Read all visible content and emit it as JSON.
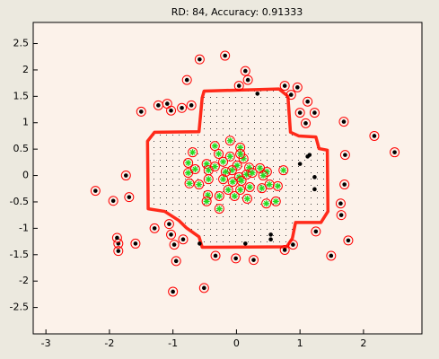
{
  "chart_data": {
    "type": "scatter",
    "title": "RD: 84, Accuracy: 0.91333",
    "xlim": [
      -3.2,
      2.92
    ],
    "ylim": [
      -3,
      2.9
    ],
    "xticks": [
      -3,
      -2,
      -1,
      0,
      1,
      2
    ],
    "yticks": [
      -2.5,
      -2,
      -1.5,
      -1,
      -0.5,
      0,
      0.5,
      1,
      1.5,
      2,
      2.5
    ],
    "boundary": {
      "color": "#ff2a1a",
      "x": [
        -0.51,
        0.67,
        0.81,
        0.85,
        0.98,
        1.25,
        1.3,
        1.43,
        1.44,
        1.33,
        0.93,
        0.88,
        0.79,
        -0.54,
        -0.59,
        -0.79,
        -0.91,
        -1.13,
        -1.39,
        -1.4,
        -1.29,
        -0.59,
        -0.54
      ],
      "y": [
        1.6,
        1.64,
        1.5,
        0.82,
        0.75,
        0.73,
        0.51,
        0.48,
        -0.68,
        -0.89,
        -0.89,
        -1.19,
        -1.35,
        -1.36,
        -1.16,
        -0.99,
        -0.85,
        -0.68,
        -0.63,
        0.65,
        0.82,
        0.83,
        1.47
      ]
    },
    "series": [
      {
        "color": "#000000",
        "marker": "dot",
        "ring_color": "#ff0000",
        "x": [
          -0.58,
          -0.18,
          0.14,
          0.18,
          0.04,
          -0.78,
          0.76,
          0.96,
          0.86,
          1.12,
          1.0,
          1.23,
          1.09,
          1.69,
          2.17,
          2.49,
          1.71,
          1.7,
          1.64,
          1.65,
          1.25,
          1.76,
          1.49,
          0.89,
          0.76,
          0.27,
          -0.01,
          -0.33,
          -0.51,
          -1.0,
          -0.95,
          -0.98,
          -0.84,
          -1.03,
          -1.06,
          -1.29,
          -1.59,
          -1.86,
          -1.86,
          -1.88,
          -1.94,
          -2.22,
          -1.69,
          -1.74,
          -1.5,
          -1.23,
          -1.09,
          -1.03,
          -0.86,
          -0.71
        ],
        "y": [
          2.2,
          2.27,
          1.98,
          1.81,
          1.7,
          1.81,
          1.7,
          1.67,
          1.53,
          1.4,
          1.19,
          1.19,
          0.99,
          1.02,
          0.75,
          0.44,
          0.39,
          -0.17,
          -0.53,
          -0.75,
          -1.06,
          -1.23,
          -1.52,
          -1.31,
          -1.41,
          -1.6,
          -1.57,
          -1.52,
          -2.13,
          -2.2,
          -1.62,
          -1.31,
          -1.21,
          -1.12,
          -0.92,
          -1.0,
          -1.29,
          -1.29,
          -1.43,
          -1.18,
          -0.48,
          -0.29,
          -0.41,
          0.0,
          1.21,
          1.33,
          1.36,
          1.23,
          1.28,
          1.33
        ]
      },
      {
        "color": "#000000",
        "marker": "dot",
        "x": [
          0.33,
          1.0,
          1.12,
          1.15,
          1.23,
          1.23,
          0.54,
          0.54,
          0.14,
          -0.58
        ],
        "y": [
          1.55,
          0.22,
          0.36,
          0.39,
          -0.03,
          -0.26,
          -1.12,
          -1.21,
          -1.29,
          -1.29
        ]
      },
      {
        "color": "#22dd22",
        "marker": "star",
        "ring_color": "#ff0000",
        "x": [
          -0.1,
          -0.34,
          -0.28,
          -0.69,
          -0.76,
          -0.47,
          -0.34,
          -0.21,
          -0.1,
          0.01,
          0.11,
          0.2,
          0.06,
          0.06,
          -0.07,
          -0.17,
          -0.44,
          -0.65,
          -0.76,
          -0.74,
          -0.59,
          -0.44,
          -0.21,
          -0.13,
          -0.27,
          -0.45,
          -0.47,
          -0.27,
          -0.03,
          0.06,
          0.04,
          0.16,
          0.25,
          0.37,
          0.48,
          0.74,
          0.52,
          0.4,
          0.21,
          0.08,
          0.17,
          0.47,
          0.62,
          0.65,
          0.42,
          -0.06
        ],
        "y": [
          0.66,
          0.56,
          0.41,
          0.44,
          0.24,
          0.22,
          0.17,
          0.26,
          0.36,
          0.19,
          0.32,
          0.15,
          0.53,
          0.41,
          0.1,
          0.07,
          0.1,
          0.12,
          0.05,
          -0.15,
          -0.17,
          -0.07,
          -0.07,
          -0.27,
          -0.39,
          -0.37,
          -0.49,
          -0.63,
          -0.39,
          -0.27,
          -0.03,
          0.02,
          0.05,
          0.14,
          0.07,
          0.1,
          -0.17,
          -0.24,
          -0.22,
          -0.1,
          -0.44,
          -0.53,
          -0.49,
          -0.2,
          0.0,
          -0.12
        ]
      }
    ]
  }
}
